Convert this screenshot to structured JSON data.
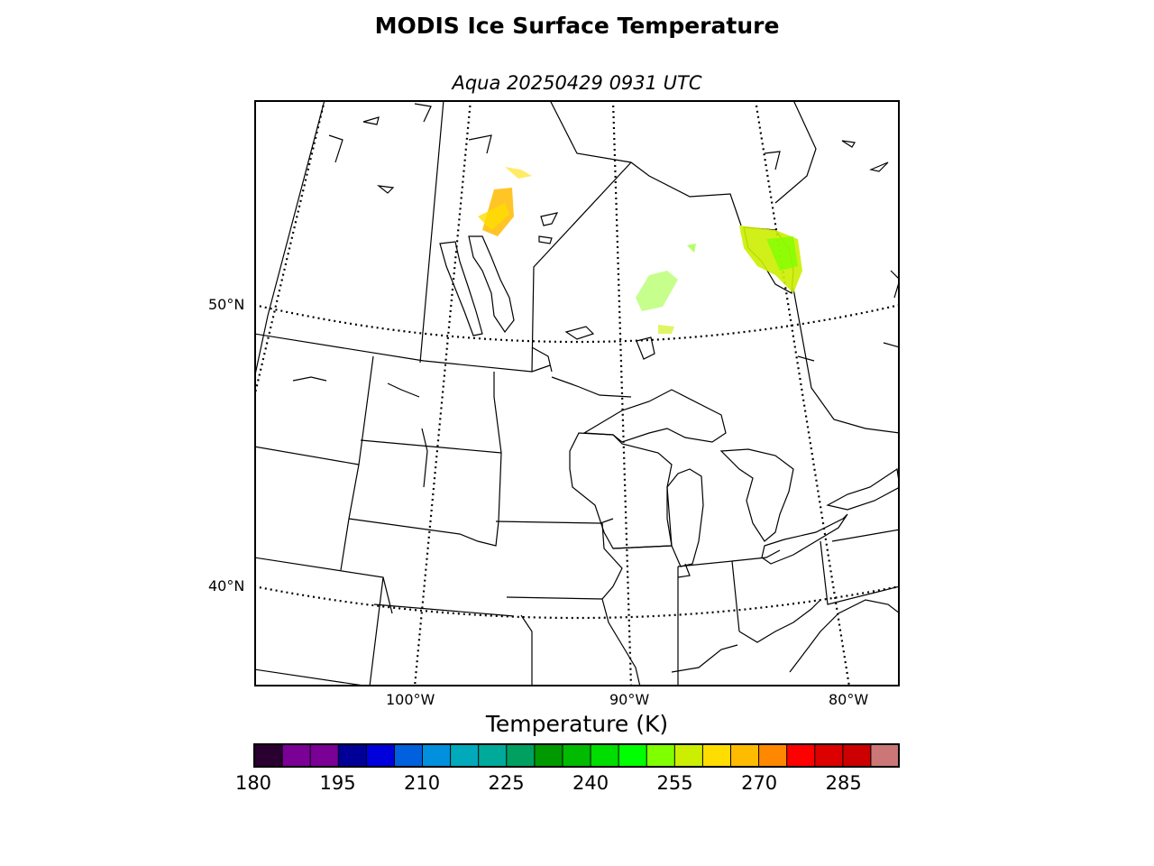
{
  "title": "MODIS Ice Surface Temperature",
  "subtitle": "Aqua 20250429 0931 UTC",
  "map": {
    "lat_labels": [
      "50°N",
      "40°N"
    ],
    "lon_labels": [
      "100°W",
      "90°W",
      "80°W"
    ]
  },
  "colorbar": {
    "title": "Temperature (K)",
    "min": 180,
    "max": 295,
    "step": 5,
    "tick_labels": [
      "180",
      "195",
      "210",
      "225",
      "240",
      "255",
      "270",
      "285"
    ],
    "colors": [
      "#2a0030",
      "#7a0096",
      "#7a0096",
      "#000099",
      "#0000dd",
      "#0060dd",
      "#0090dd",
      "#00aabb",
      "#00aa9a",
      "#00a060",
      "#009900",
      "#00bb00",
      "#00dd00",
      "#00ff00",
      "#80ff00",
      "#ccee00",
      "#ffdd00",
      "#ffbb00",
      "#ff8800",
      "#ff0000",
      "#dd0000",
      "#cc0000",
      "#cc7777"
    ]
  }
}
